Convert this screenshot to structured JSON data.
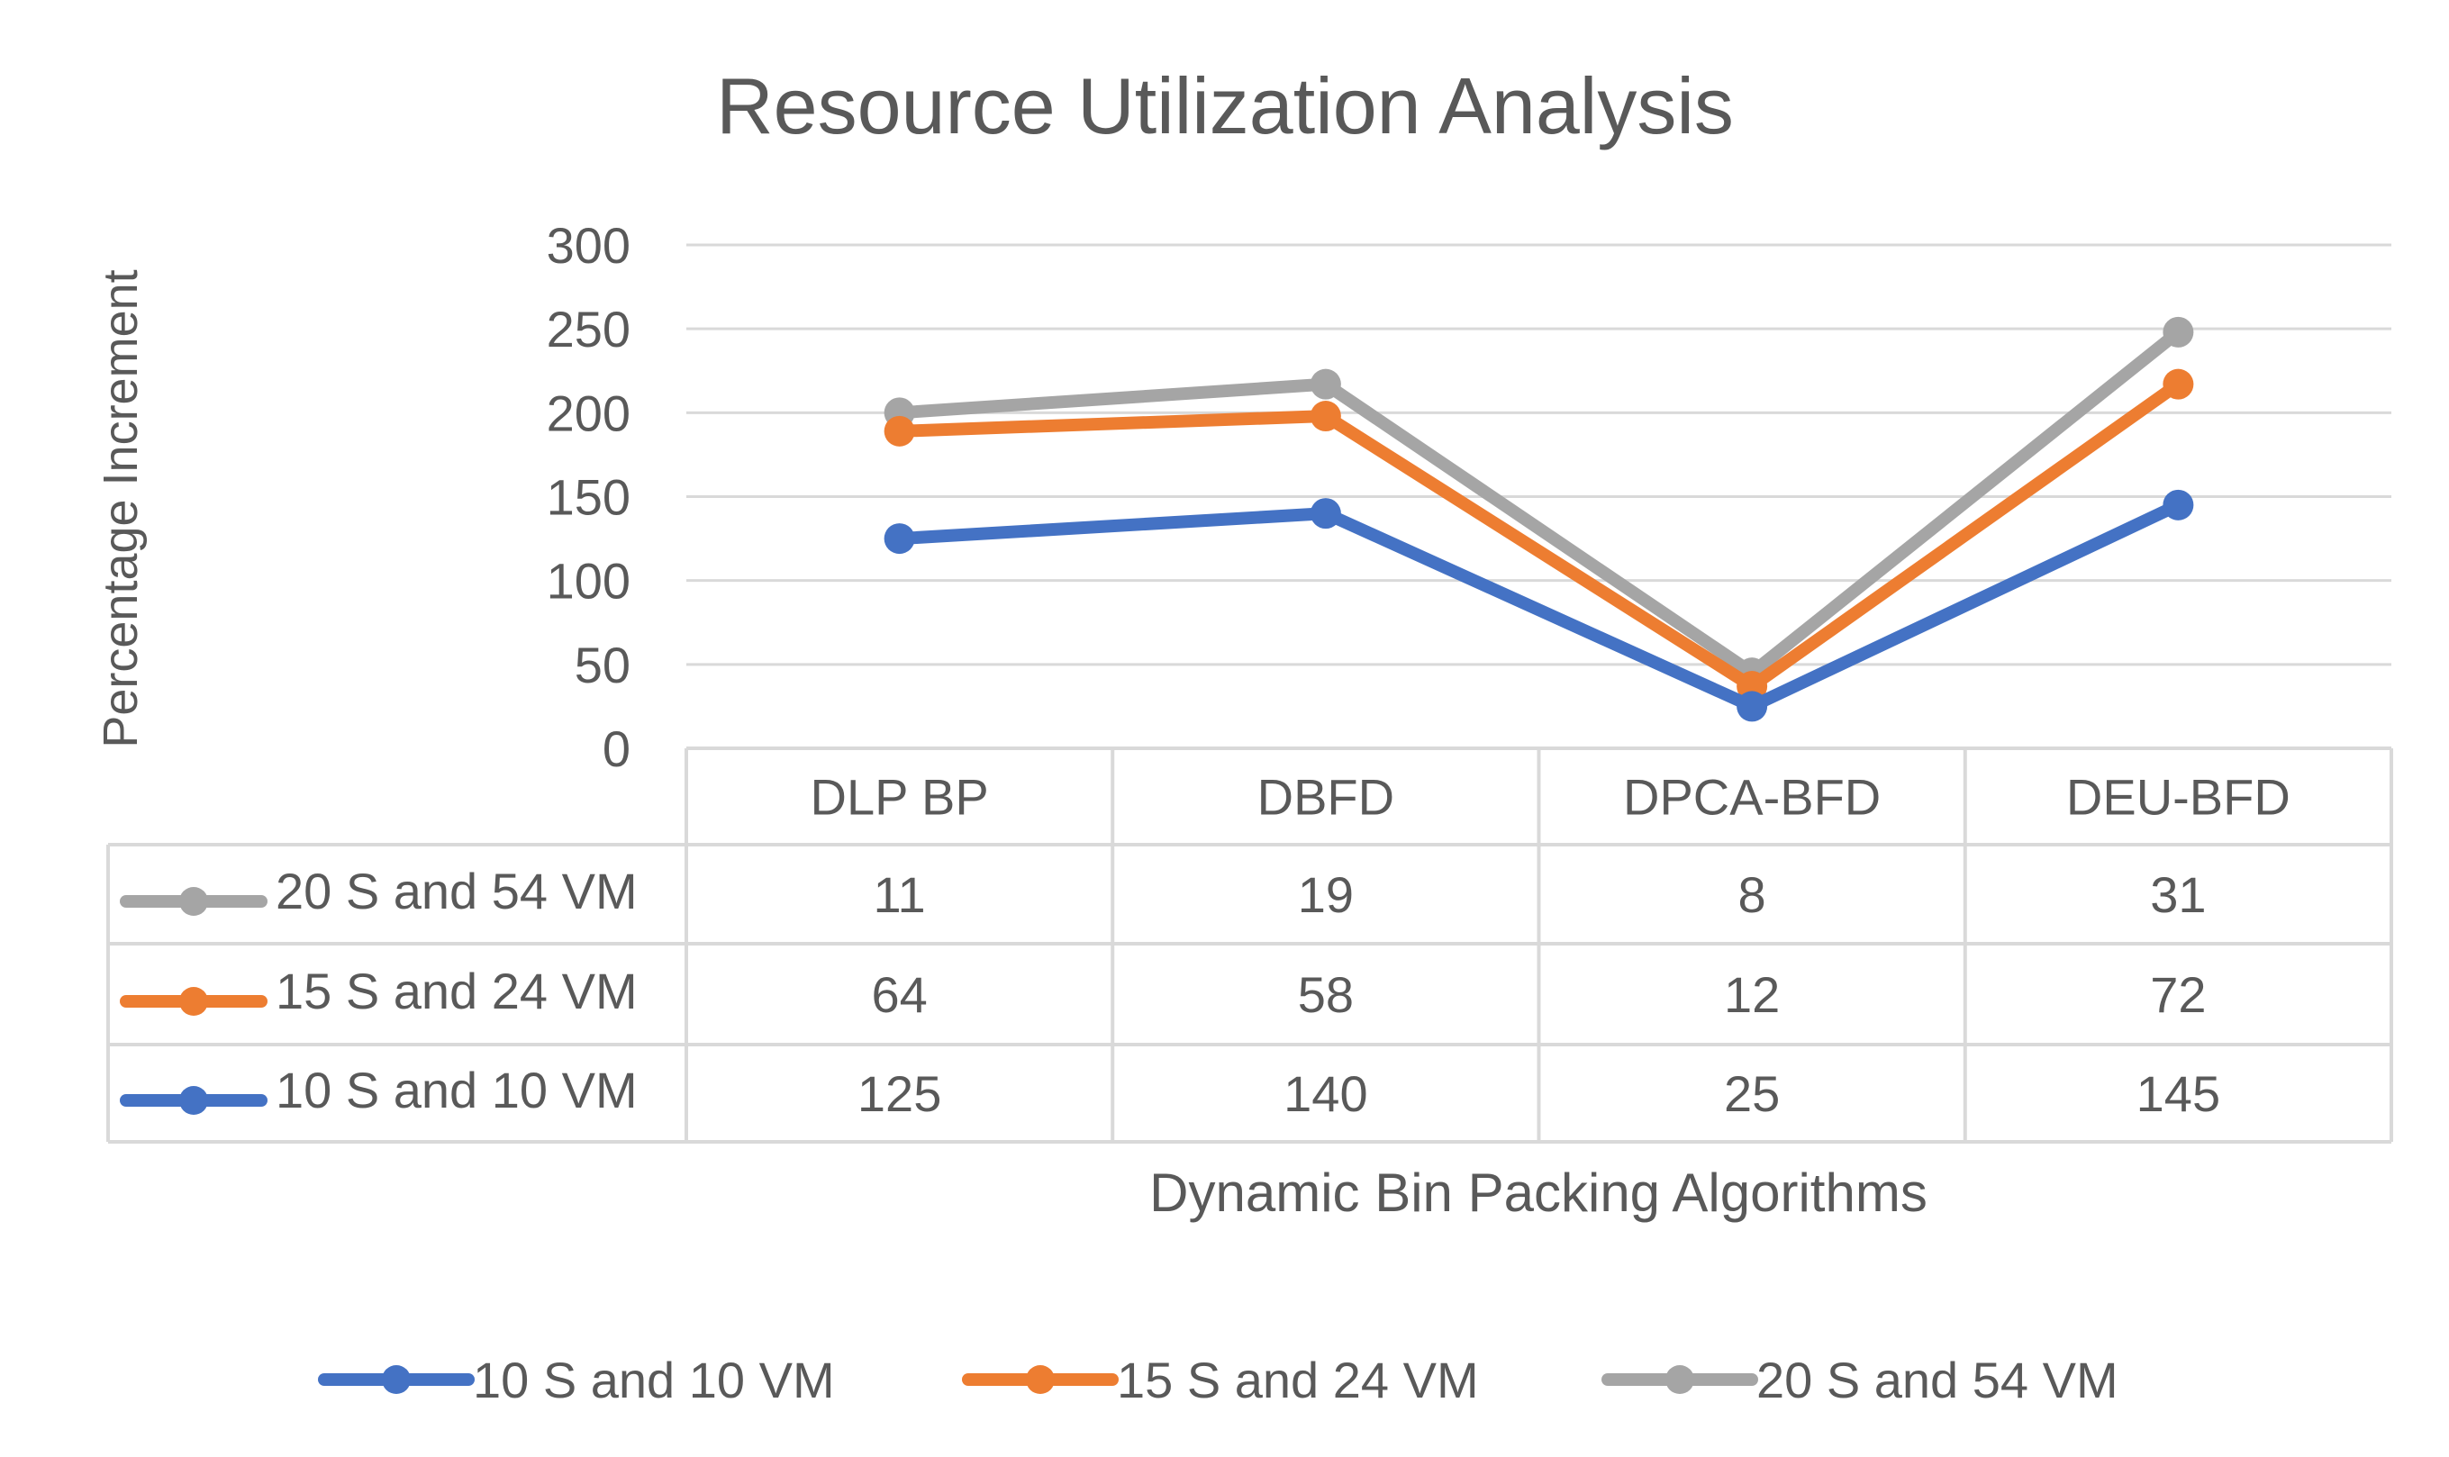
{
  "chart_data": {
    "type": "line",
    "title": "Resource Utilization Analysis",
    "xlabel": "Dynamic Bin Packing Algorithms",
    "ylabel": "Percentage Increment",
    "ylim": [
      0,
      300
    ],
    "yticks": [
      0,
      50,
      100,
      150,
      200,
      250,
      300
    ],
    "grid": true,
    "stacked": true,
    "legend_position": "bottom",
    "categories": [
      "DLP BP",
      "DBFD",
      "DPCA-BFD",
      "DEU-BFD"
    ],
    "series": [
      {
        "name": "10 S and 10 VM",
        "color": "#4472C4",
        "values": [
          125,
          140,
          25,
          145
        ]
      },
      {
        "name": "15 S and 24 VM",
        "color": "#ED7D31",
        "values": [
          64,
          58,
          12,
          72
        ]
      },
      {
        "name": "20 S and 54 VM",
        "color": "#A5A5A5",
        "values": [
          11,
          19,
          8,
          31
        ]
      }
    ],
    "table_row_order": [
      "20 S and 54 VM",
      "15 S and 24 VM",
      "10 S and 10 VM"
    ],
    "gridline_color": "#D9D9D9",
    "text_color": "#595959"
  }
}
